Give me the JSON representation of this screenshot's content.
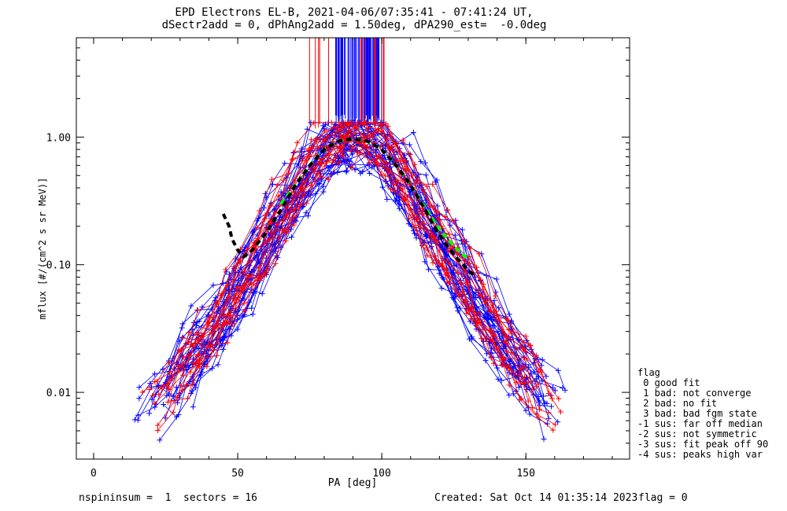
{
  "figure": {
    "title_line1": "EPD Electrons EL-B, 2021-04-06/07:35:41 - 07:41:24 UT,",
    "title_line2": "dSectr2add = 0, dPhAng2add = 1.50deg, dPA290_est=  -0.0deg",
    "footer_left": "nspininsum =  1  sectors = 16",
    "footer_mid": "Created: Sat Oct 14 01:35:14 2023",
    "footer_right": "flag = 0"
  },
  "legend": {
    "title": "flag",
    "items": [
      " 0 good fit",
      " 1 bad: not converge",
      " 2 bad: no fit",
      " 3 bad: bad fgm state",
      "-1 sus: far off median",
      "-2 sus: not symmetric",
      "-3 sus: fit peak off 90",
      "-4 sus: peaks high var"
    ]
  },
  "chart_data": {
    "type": "line",
    "xlabel": "PA [deg]",
    "ylabel": "mflux [#/(cm^2 s sr MeV)]",
    "xlim": [
      -6,
      186
    ],
    "xscale": "linear",
    "ylim": [
      0.003,
      6
    ],
    "yscale": "log",
    "xticks": [
      0,
      50,
      100,
      150
    ],
    "xtick_labels": [
      "0",
      "50",
      "100",
      "150"
    ],
    "yticks": [
      0.01,
      0.1,
      1.0
    ],
    "ytick_labels": [
      "0.01",
      "0.10",
      "1.00"
    ],
    "colors": {
      "blue": "#0000ff",
      "red": "#ff0000",
      "green": "#00ff00",
      "black": "#000000"
    },
    "series": [
      {
        "color": "blue",
        "marker": "+",
        "x": [
          20,
          25,
          30,
          35,
          40,
          45,
          50,
          55,
          60,
          65,
          70,
          75,
          80,
          85,
          90,
          95,
          100,
          105,
          110,
          115,
          120,
          125,
          130,
          135,
          140,
          145,
          150,
          155,
          160
        ],
        "y": [
          0.008,
          0.011,
          0.015,
          0.021,
          0.03,
          0.045,
          0.07,
          0.11,
          0.17,
          0.27,
          0.42,
          0.62,
          0.82,
          0.95,
          1.0,
          0.95,
          0.82,
          0.62,
          0.42,
          0.27,
          0.17,
          0.11,
          0.07,
          0.045,
          0.03,
          0.021,
          0.015,
          0.011,
          0.008
        ]
      },
      {
        "color": "red",
        "marker": "+",
        "x": [
          20,
          25,
          30,
          35,
          40,
          45,
          50,
          55,
          60,
          65,
          70,
          75,
          80,
          85,
          90,
          95,
          100,
          105,
          110,
          115,
          120,
          125,
          130,
          135,
          140,
          145,
          150,
          155,
          160
        ],
        "y": [
          0.007,
          0.01,
          0.014,
          0.02,
          0.029,
          0.043,
          0.066,
          0.1,
          0.16,
          0.25,
          0.4,
          0.6,
          0.8,
          0.94,
          0.99,
          0.94,
          0.8,
          0.6,
          0.4,
          0.25,
          0.16,
          0.1,
          0.066,
          0.043,
          0.029,
          0.02,
          0.014,
          0.01,
          0.007
        ]
      },
      {
        "color": "green",
        "style": "dashed",
        "x": [
          65,
          70,
          75,
          80,
          85,
          90,
          95,
          100,
          105,
          110,
          115,
          120,
          125,
          130
        ],
        "y": [
          0.3,
          0.42,
          0.6,
          0.8,
          0.93,
          0.97,
          0.93,
          0.8,
          0.6,
          0.42,
          0.28,
          0.19,
          0.14,
          0.11
        ]
      },
      {
        "color": "black",
        "style": "dashed",
        "x": [
          45,
          47,
          48,
          50,
          52,
          55,
          60,
          65,
          70,
          75,
          80,
          85,
          90,
          95,
          100,
          105,
          110,
          115,
          120,
          125,
          130,
          133
        ],
        "y": [
          0.25,
          0.2,
          0.16,
          0.13,
          0.115,
          0.13,
          0.18,
          0.27,
          0.42,
          0.6,
          0.8,
          0.93,
          0.97,
          0.93,
          0.8,
          0.6,
          0.42,
          0.27,
          0.17,
          0.12,
          0.09,
          0.08
        ]
      }
    ],
    "annotations": [
      {
        "type": "vertical-lines",
        "color": "blue",
        "x_range": [
          84,
          100
        ],
        "y_range": [
          1.25,
          6
        ]
      },
      {
        "type": "vertical-lines",
        "color": "red",
        "x_range": [
          71,
          101
        ],
        "y_range": [
          1.1,
          6
        ]
      }
    ]
  }
}
